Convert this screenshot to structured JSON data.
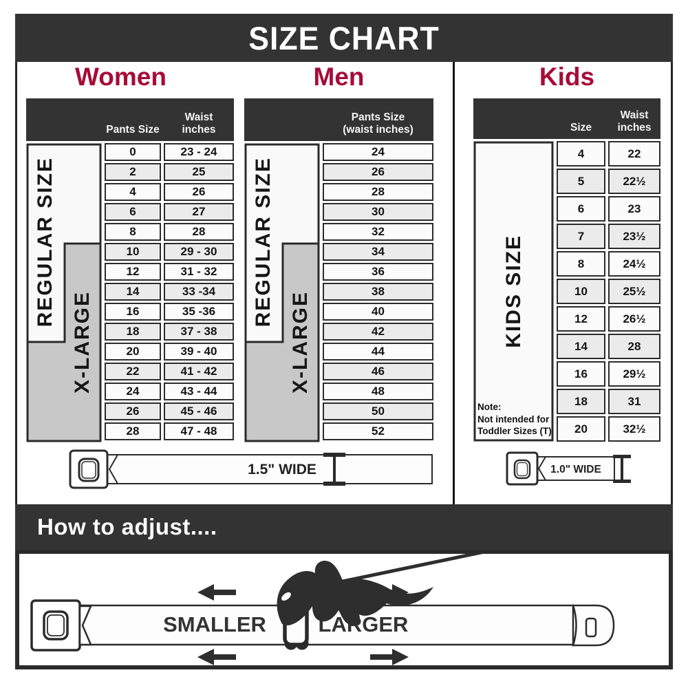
{
  "title": "SIZE CHART",
  "colors": {
    "accent": "#A60C37",
    "band": "#333333",
    "gray_block": "#c8c8c8"
  },
  "women": {
    "title": "Women",
    "header_col1": "Pants Size",
    "header_col2": "Waist\ninches",
    "side_regular": "REGULAR SIZE",
    "side_xlarge": "X-LARGE",
    "belt_label": "1.5\" WIDE",
    "rows": [
      [
        "0",
        "23 - 24"
      ],
      [
        "2",
        "25"
      ],
      [
        "4",
        "26"
      ],
      [
        "6",
        "27"
      ],
      [
        "8",
        "28"
      ],
      [
        "10",
        "29 - 30"
      ],
      [
        "12",
        "31 - 32"
      ],
      [
        "14",
        "33 -34"
      ],
      [
        "16",
        "35 -36"
      ],
      [
        "18",
        "37 - 38"
      ],
      [
        "20",
        "39 - 40"
      ],
      [
        "22",
        "41 - 42"
      ],
      [
        "24",
        "43 - 44"
      ],
      [
        "26",
        "45 - 46"
      ],
      [
        "28",
        "47 - 48"
      ]
    ]
  },
  "men": {
    "title": "Men",
    "header_col1": "Pants Size\n(waist inches)",
    "side_regular": "REGULAR SIZE",
    "side_xlarge": "X-LARGE",
    "rows": [
      "24",
      "26",
      "28",
      "30",
      "32",
      "34",
      "36",
      "38",
      "40",
      "42",
      "44",
      "46",
      "48",
      "50",
      "52"
    ]
  },
  "kids": {
    "title": "Kids",
    "header_col1": "Size",
    "header_col2": "Waist\ninches",
    "side_label": "KIDS SIZE",
    "note": "Note:\nNot intended for\nToddler Sizes (T)",
    "belt_label": "1.0\" WIDE",
    "rows": [
      [
        "4",
        "22"
      ],
      [
        "5",
        "22½"
      ],
      [
        "6",
        "23"
      ],
      [
        "7",
        "23½"
      ],
      [
        "8",
        "24½"
      ],
      [
        "10",
        "25½"
      ],
      [
        "12",
        "26½"
      ],
      [
        "14",
        "28"
      ],
      [
        "16",
        "29½"
      ],
      [
        "18",
        "31"
      ],
      [
        "20",
        "32½"
      ]
    ]
  },
  "adjust": {
    "title": "How to adjust....",
    "smaller": "SMALLER",
    "larger": "LARGER"
  }
}
